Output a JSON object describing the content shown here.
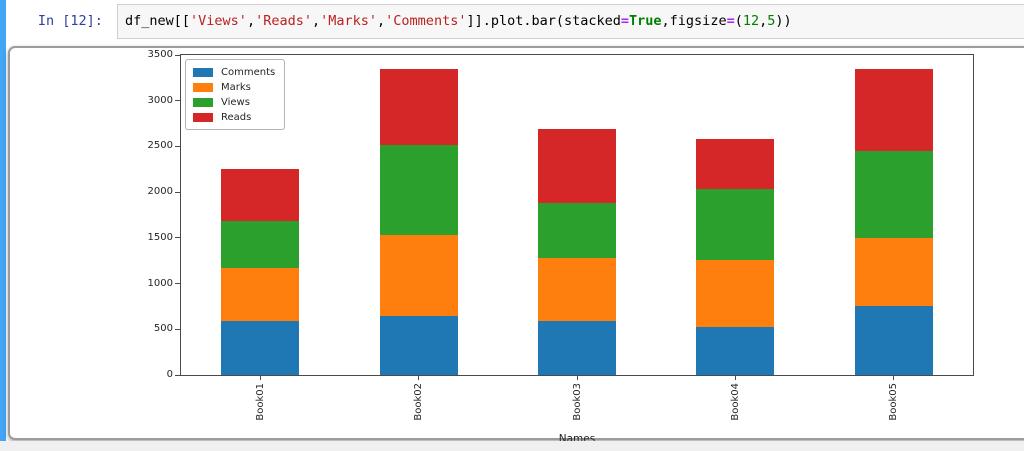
{
  "notebook": {
    "prompt": "In [12]: ",
    "code_tokens": [
      {
        "t": "df_new[[",
        "c": "p"
      },
      {
        "t": "'Views'",
        "c": "s"
      },
      {
        "t": ",",
        "c": "p"
      },
      {
        "t": "'Reads'",
        "c": "s"
      },
      {
        "t": ",",
        "c": "p"
      },
      {
        "t": "'Marks'",
        "c": "s"
      },
      {
        "t": ",",
        "c": "p"
      },
      {
        "t": "'Comments'",
        "c": "s"
      },
      {
        "t": "]].plot.bar(stacked",
        "c": "p"
      },
      {
        "t": "=",
        "c": "o"
      },
      {
        "t": "True",
        "c": "k"
      },
      {
        "t": ",figsize",
        "c": "p"
      },
      {
        "t": "=",
        "c": "o"
      },
      {
        "t": "(",
        "c": "p"
      },
      {
        "t": "12",
        "c": "n"
      },
      {
        "t": ",",
        "c": "p"
      },
      {
        "t": "5",
        "c": "n"
      },
      {
        "t": "))",
        "c": "p"
      }
    ]
  },
  "chart_data": {
    "type": "bar",
    "stacked": true,
    "categories": [
      "Book01",
      "Book02",
      "Book03",
      "Book04",
      "Book05"
    ],
    "series": [
      {
        "name": "Comments",
        "color": "#1f77b4",
        "values": [
          590,
          640,
          590,
          520,
          760
        ]
      },
      {
        "name": "Marks",
        "color": "#ff7f0e",
        "values": [
          580,
          890,
          690,
          740,
          740
        ]
      },
      {
        "name": "Views",
        "color": "#2ca02c",
        "values": [
          510,
          990,
          600,
          770,
          950
        ]
      },
      {
        "name": "Reads",
        "color": "#d62728",
        "values": [
          570,
          830,
          810,
          550,
          900
        ]
      }
    ],
    "title": "",
    "xlabel": "Names",
    "ylabel": "",
    "ylim": [
      0,
      3500
    ],
    "yticks": [
      0,
      500,
      1000,
      1500,
      2000,
      2500,
      3000,
      3500
    ],
    "x_tick_rotation": 90,
    "grid": false,
    "legend_position": "upper left",
    "legend_order": [
      "Comments",
      "Marks",
      "Views",
      "Reads"
    ]
  },
  "colors": {
    "cell_indicator": "#42a5f5",
    "prompt_text": "#303f9f",
    "input_bg": "#f7f7f7",
    "input_border": "#cfcfcf",
    "output_border": "#9c9c9c",
    "axis": "#4a4a4a",
    "tick_text": "#262626"
  }
}
